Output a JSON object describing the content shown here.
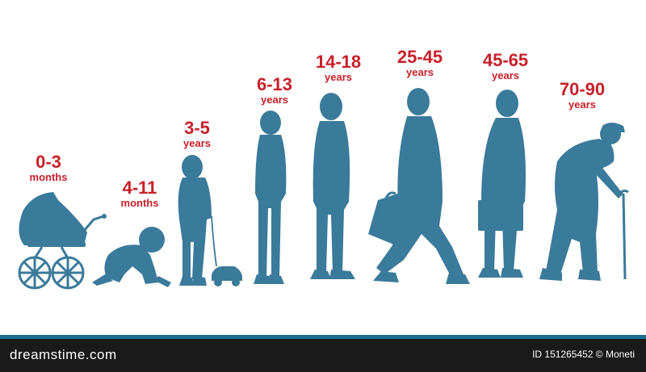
{
  "colors": {
    "silhouette": "#3a7a9a",
    "label": "#c8202a",
    "footer_bg": "#1a1a1a",
    "footer_bar": "#1e6d96"
  },
  "stages": [
    {
      "range": "0-3",
      "unit": "months"
    },
    {
      "range": "4-11",
      "unit": "months"
    },
    {
      "range": "3-5",
      "unit": "years"
    },
    {
      "range": "6-13",
      "unit": "years"
    },
    {
      "range": "14-18",
      "unit": "years"
    },
    {
      "range": "25-45",
      "unit": "years"
    },
    {
      "range": "45-65",
      "unit": "years"
    },
    {
      "range": "70-90",
      "unit": "years"
    }
  ],
  "footer": {
    "brand": "dreamstime.com",
    "credit": "ID 151265452 © Moneti"
  }
}
